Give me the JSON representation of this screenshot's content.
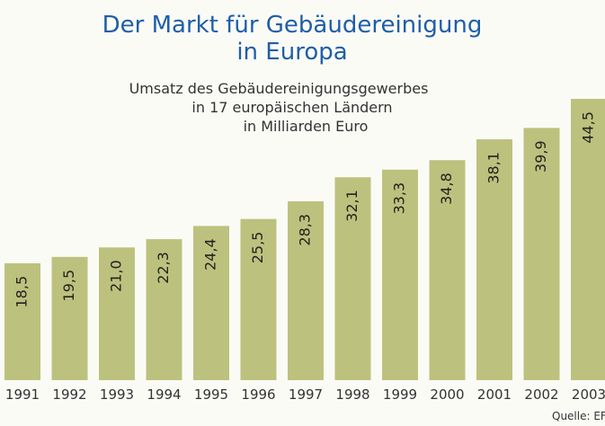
{
  "chart_data": {
    "type": "bar",
    "title": [
      "Der Markt für Gebäudereinigung",
      "in Europa"
    ],
    "subtitle": [
      "Umsatz des Gebäudereinigungsgewerbes",
      "in 17 europäischen Ländern",
      "in Milliarden Euro"
    ],
    "categories": [
      "1991",
      "1992",
      "1993",
      "1994",
      "1995",
      "1996",
      "1997",
      "1998",
      "1999",
      "2000",
      "2001",
      "2002",
      "2003"
    ],
    "values": [
      18.5,
      19.5,
      21.0,
      22.3,
      24.4,
      25.5,
      28.3,
      32.1,
      33.3,
      34.8,
      38.1,
      39.9,
      44.5
    ],
    "value_labels": [
      "18,5",
      "19,5",
      "21,0",
      "22,3",
      "24,4",
      "25,5",
      "28,3",
      "32,1",
      "33,3",
      "34,8",
      "38,1",
      "39,9",
      "44,5"
    ],
    "color": "#bcc27d",
    "source": "Quelle: EFCI"
  }
}
